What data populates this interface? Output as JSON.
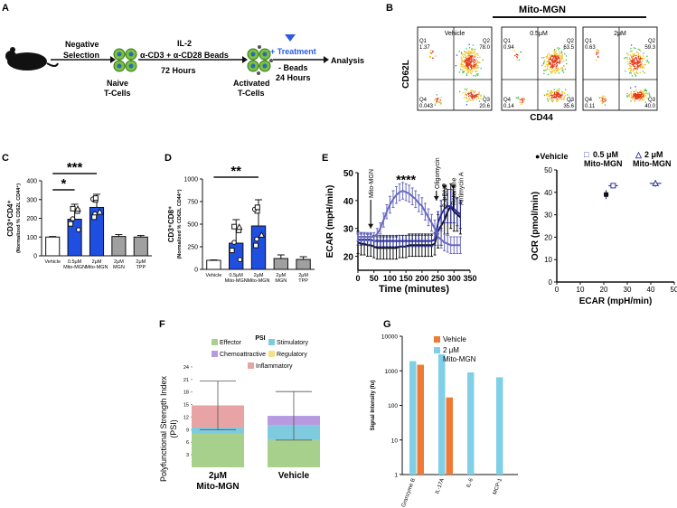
{
  "panels": {
    "A": {
      "letter": "A",
      "steps": [
        "Negative",
        "Selection",
        "IL-2",
        "α-CD3 + α-CD28 Beads",
        "72 Hours",
        "Naive",
        "T-Cells",
        "+ Treatment",
        "- Beads",
        "24 Hours",
        "Activated",
        "T-Cells",
        "Analysis"
      ]
    },
    "B": {
      "letter": "B",
      "header": "Mito-MGN",
      "plots": [
        {
          "title": "Vehicle",
          "q1": "Q1",
          "q1v": "1.37",
          "q2": "Q2",
          "q2v": "78.0",
          "q3": "Q3",
          "q3v": "20.6",
          "q4": "Q4",
          "q4v": "0.043"
        },
        {
          "title": "0.5μM",
          "q1": "Q1",
          "q1v": "0.94",
          "q2": "Q2",
          "q2v": "63.5",
          "q3": "Q3",
          "q3v": "35.6",
          "q4": "Q4",
          "q4v": "0.14"
        },
        {
          "title": "2μM",
          "q1": "Q1",
          "q1v": "0.63",
          "q2": "Q2",
          "q2v": "59.3",
          "q3": "Q3",
          "q3v": "40.0",
          "q4": "Q4",
          "q4v": "0.11"
        }
      ],
      "ylabel": "CD62L",
      "xlabel": "CD44"
    },
    "F": {
      "letter": "F",
      "title": "PSI"
    },
    "G": {
      "letter": "G"
    }
  },
  "chart_data": [
    {
      "id": "C",
      "type": "bar",
      "letter": "C",
      "categories": [
        "Vehicle",
        "0.5μM Mito-MGN",
        "2μM Mito-MGN",
        "2μM MGN",
        "2μM TPP"
      ],
      "values": [
        100,
        195,
        258,
        103,
        100
      ],
      "errors": [
        3,
        80,
        70,
        10,
        8
      ],
      "colors": [
        "#ffffff",
        "#1f4fe0",
        "#1f4fe0",
        "#a0a0a0",
        "#a0a0a0"
      ],
      "ylabel": "CD3⁺CD4⁺",
      "ylabel2": "(Normalized % CD62L CD44⁺)",
      "ylim": [
        0,
        400
      ],
      "yticks": [
        0,
        100,
        200,
        300,
        400
      ],
      "significance": [
        {
          "from": 0,
          "to": 1,
          "label": "*"
        },
        {
          "from": 0,
          "to": 2,
          "label": "***"
        }
      ]
    },
    {
      "id": "D",
      "type": "bar",
      "letter": "D",
      "categories": [
        "Vehicle",
        "0.5μM Mito-MGN",
        "2μM Mito-MGN",
        "2μM MGN",
        "2μM TPP"
      ],
      "values": [
        100,
        290,
        480,
        120,
        110
      ],
      "errors": [
        5,
        260,
        290,
        40,
        30
      ],
      "colors": [
        "#ffffff",
        "#1f4fe0",
        "#1f4fe0",
        "#a0a0a0",
        "#a0a0a0"
      ],
      "ylabel": "CD3⁺CD8⁺",
      "ylabel2": "(Normalized % CD62L CD44⁺)",
      "ylim": [
        0,
        1000
      ],
      "yticks": [
        0,
        250,
        500,
        750,
        1000
      ],
      "significance": [
        {
          "from": 0,
          "to": 2,
          "label": "**"
        }
      ]
    },
    {
      "id": "E",
      "type": "line",
      "letter": "E",
      "xlabel": "Time (minutes)",
      "ylabel": "ECAR (mpH/min)",
      "xlim": [
        0,
        350
      ],
      "ylim": [
        15,
        50
      ],
      "xticks": [
        0,
        50,
        100,
        150,
        200,
        250,
        300,
        350
      ],
      "yticks": [
        20,
        30,
        40,
        50
      ],
      "annotations": [
        "Mito-MGN",
        "Oligomycin",
        "2,4 DNP",
        "Rotenone",
        "Antimycin A",
        "****"
      ],
      "series": [
        {
          "name": "Vehicle",
          "color": "#111111",
          "x": [
            0,
            10,
            20,
            30,
            40,
            50,
            60,
            70,
            80,
            90,
            100,
            110,
            120,
            130,
            140,
            150,
            160,
            170,
            180,
            190,
            200,
            210,
            220,
            230,
            240,
            250,
            260,
            270,
            280,
            290,
            300,
            310,
            320
          ],
          "y": [
            25,
            24.5,
            24.5,
            24,
            24,
            23.5,
            23,
            23,
            23,
            23,
            23,
            23,
            23,
            23.5,
            23.5,
            23.5,
            24,
            24,
            24,
            24,
            24,
            24,
            24,
            24,
            24.5,
            29,
            31,
            33,
            36,
            38,
            36,
            35,
            34
          ],
          "err": [
            4,
            4,
            4,
            4,
            4,
            4,
            4,
            4,
            4,
            4,
            4,
            4,
            4,
            4,
            4,
            4,
            4,
            4,
            4,
            4,
            4,
            4,
            4,
            4,
            4,
            6,
            7,
            8,
            8,
            8,
            7,
            6,
            6
          ]
        },
        {
          "name": "0.5 μM Mito-MGN",
          "color": "#2b2f9e",
          "x": [
            0,
            10,
            20,
            30,
            40,
            50,
            60,
            70,
            80,
            90,
            100,
            110,
            120,
            130,
            140,
            150,
            160,
            170,
            180,
            190,
            200,
            210,
            220,
            230,
            240,
            250,
            260,
            270,
            280,
            290,
            300,
            310,
            320
          ],
          "y": [
            26,
            26,
            26,
            26,
            26,
            25.5,
            25.5,
            25.5,
            25.5,
            25.5,
            25.5,
            25.5,
            25.5,
            25.5,
            25.5,
            25.5,
            25.5,
            25.5,
            25.5,
            25.5,
            25.5,
            25.5,
            25.5,
            25.5,
            26,
            32,
            35,
            37,
            38,
            38,
            37,
            36,
            35
          ],
          "err": [
            2,
            2,
            2,
            2,
            2,
            2,
            2,
            2,
            2,
            2,
            2,
            2,
            2,
            2,
            2,
            2,
            2,
            2,
            2,
            2,
            2,
            2,
            2,
            2,
            2,
            4,
            5,
            5,
            6,
            6,
            5,
            5,
            5
          ]
        },
        {
          "name": "2 μM Mito-MGN",
          "color": "#6a6ac0",
          "x": [
            0,
            10,
            20,
            30,
            40,
            50,
            60,
            70,
            80,
            90,
            100,
            110,
            120,
            130,
            140,
            150,
            160,
            170,
            180,
            190,
            200,
            210,
            220,
            230,
            240,
            250,
            260,
            270,
            280,
            290,
            300,
            310,
            320
          ],
          "y": [
            27,
            27,
            27,
            27,
            27,
            27,
            28,
            30,
            33,
            36,
            38.5,
            40.5,
            42,
            43,
            43.5,
            43,
            42.5,
            41.5,
            40.5,
            39,
            38,
            36,
            34,
            32,
            30,
            27,
            26,
            25,
            24.5,
            24,
            24,
            24,
            24
          ],
          "err": [
            1.5,
            1.5,
            1.5,
            1.5,
            1.5,
            1.5,
            2,
            2,
            2.5,
            2.5,
            3,
            3,
            3,
            3,
            3,
            3,
            3,
            3,
            3,
            3,
            3,
            3,
            3,
            3,
            3,
            3,
            3,
            3,
            3,
            3,
            3,
            3,
            3
          ]
        }
      ]
    },
    {
      "id": "E2",
      "type": "scatter",
      "xlabel": "ECAR (mpH/min)",
      "ylabel": "OCR (pmol/min)",
      "xlim": [
        0,
        50
      ],
      "ylim": [
        0,
        50
      ],
      "xticks": [
        0,
        10,
        20,
        30,
        40,
        50
      ],
      "yticks": [
        0,
        10,
        20,
        30,
        40,
        50
      ],
      "legend": [
        {
          "marker": "●",
          "label": "Vehicle"
        },
        {
          "marker": "□",
          "label": "0.5 μM",
          "label2": "Mito-MGN"
        },
        {
          "marker": "△",
          "label": "2 μM",
          "label2": "Mito-MGN"
        }
      ],
      "points": [
        {
          "series": "Vehicle",
          "x": 21,
          "y": 39,
          "xerr": 1,
          "yerr": 2,
          "marker": "circle"
        },
        {
          "series": "0.5 μM Mito-MGN",
          "x": 24,
          "y": 43,
          "xerr": 2,
          "yerr": 1,
          "marker": "square"
        },
        {
          "series": "2 μM Mito-MGN",
          "x": 42,
          "y": 44,
          "xerr": 2.5,
          "yerr": 1.5,
          "marker": "triangle"
        }
      ]
    },
    {
      "id": "F",
      "type": "bar",
      "stacked": true,
      "categories": [
        "2μM Mito-MGN",
        "Vehicle"
      ],
      "ylabel": "Polyfunctional Strength Index",
      "ylabel2": "(PSI)",
      "ylim": [
        0,
        27
      ],
      "yticks": [
        3,
        6,
        9,
        12,
        15,
        18,
        21,
        24
      ],
      "legend": [
        "Effector",
        "Stimulatory",
        "Chemoattractive",
        "Regulatory",
        "Inflammatory"
      ],
      "series": [
        {
          "name": "Effector",
          "color": "#a8d08d",
          "values": [
            8,
            6.5
          ]
        },
        {
          "name": "Stimulatory",
          "color": "#7ecbe0",
          "values": [
            1.5,
            3.5
          ]
        },
        {
          "name": "Chemoattractive",
          "color": "#b79be0",
          "values": [
            0,
            2.3
          ]
        },
        {
          "name": "Regulatory",
          "color": "#f5e08a",
          "values": [
            0,
            0
          ]
        },
        {
          "name": "Inflammatory",
          "color": "#e8a4a4",
          "values": [
            5.3,
            0
          ]
        }
      ],
      "totals": [
        14.8,
        12.3
      ],
      "errors": [
        5.8,
        5.8
      ]
    },
    {
      "id": "G",
      "type": "bar",
      "scale": "log",
      "categories": [
        "Granzyme B",
        "IL-17A",
        "IL-6",
        "MCP-1"
      ],
      "ylabel": "Signal Intensity (fu)",
      "ylim": [
        1,
        10000
      ],
      "yticks": [
        1,
        10,
        100,
        1000,
        10000
      ],
      "ytick_labels": [
        "1",
        "10",
        "100",
        "1000",
        "10000"
      ],
      "series": [
        {
          "name": "Vehicle",
          "color": "#ef7a35",
          "values": [
            1500,
            170,
            null,
            null
          ]
        },
        {
          "name": "2 μM Mito-MGN",
          "color": "#7fd0e6",
          "values": [
            1900,
            3000,
            900,
            650
          ]
        }
      ]
    }
  ]
}
